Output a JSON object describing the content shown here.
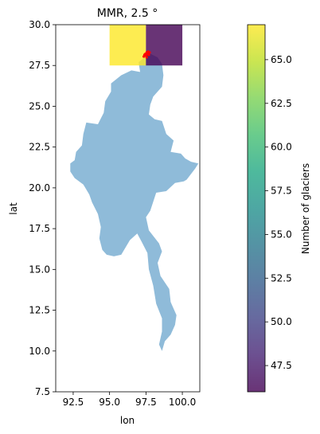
{
  "chart_data": {
    "type": "heatmap",
    "title": "MMR, 2.5 °",
    "xlabel": "lon",
    "ylabel": "lat",
    "xlim": [
      91.3,
      101.2
    ],
    "ylim": [
      7.5,
      30.0
    ],
    "xticks": [
      92.5,
      95.0,
      97.5,
      100.0
    ],
    "xtick_labels": [
      "92.5",
      "95.0",
      "97.5",
      "100.0"
    ],
    "yticks": [
      7.5,
      10.0,
      12.5,
      15.0,
      17.5,
      20.0,
      22.5,
      25.0,
      27.5,
      30.0
    ],
    "ytick_labels": [
      "7.5",
      "10.0",
      "12.5",
      "15.0",
      "17.5",
      "20.0",
      "22.5",
      "25.0",
      "27.5",
      "30.0"
    ],
    "grid": false,
    "cells": [
      {
        "lon_range": [
          95.0,
          97.5
        ],
        "lat_range": [
          27.5,
          30.0
        ],
        "value": 67,
        "color": "#fde725"
      },
      {
        "lon_range": [
          97.5,
          100.0
        ],
        "lat_range": [
          27.5,
          30.0
        ],
        "value": 46,
        "color": "#440154"
      }
    ],
    "cell_alpha": 0.8,
    "country_fill": "#8fbbd9",
    "glacier_color": "#ff0000",
    "glacier_points": [
      [
        97.35,
        28.05
      ],
      [
        97.45,
        28.2
      ],
      [
        97.55,
        28.3
      ],
      [
        97.65,
        28.35
      ],
      [
        97.75,
        28.3
      ],
      [
        97.6,
        28.2
      ],
      [
        97.5,
        28.1
      ],
      [
        97.7,
        28.15
      ],
      [
        97.4,
        28.15
      ],
      [
        97.55,
        28.0
      ]
    ],
    "colorbar": {
      "label": "Number of glaciers",
      "vmin": 46,
      "vmax": 67,
      "ticks": [
        47.5,
        50.0,
        52.5,
        55.0,
        57.5,
        60.0,
        62.5,
        65.0
      ],
      "tick_labels": [
        "47.5",
        "50.0",
        "52.5",
        "55.0",
        "57.5",
        "60.0",
        "62.5",
        "65.0"
      ],
      "colormap": [
        "#440154",
        "#482475",
        "#414487",
        "#355f8d",
        "#2a788e",
        "#21918c",
        "#22a884",
        "#44bf70",
        "#7ad151",
        "#bddf26",
        "#fde725"
      ]
    }
  }
}
